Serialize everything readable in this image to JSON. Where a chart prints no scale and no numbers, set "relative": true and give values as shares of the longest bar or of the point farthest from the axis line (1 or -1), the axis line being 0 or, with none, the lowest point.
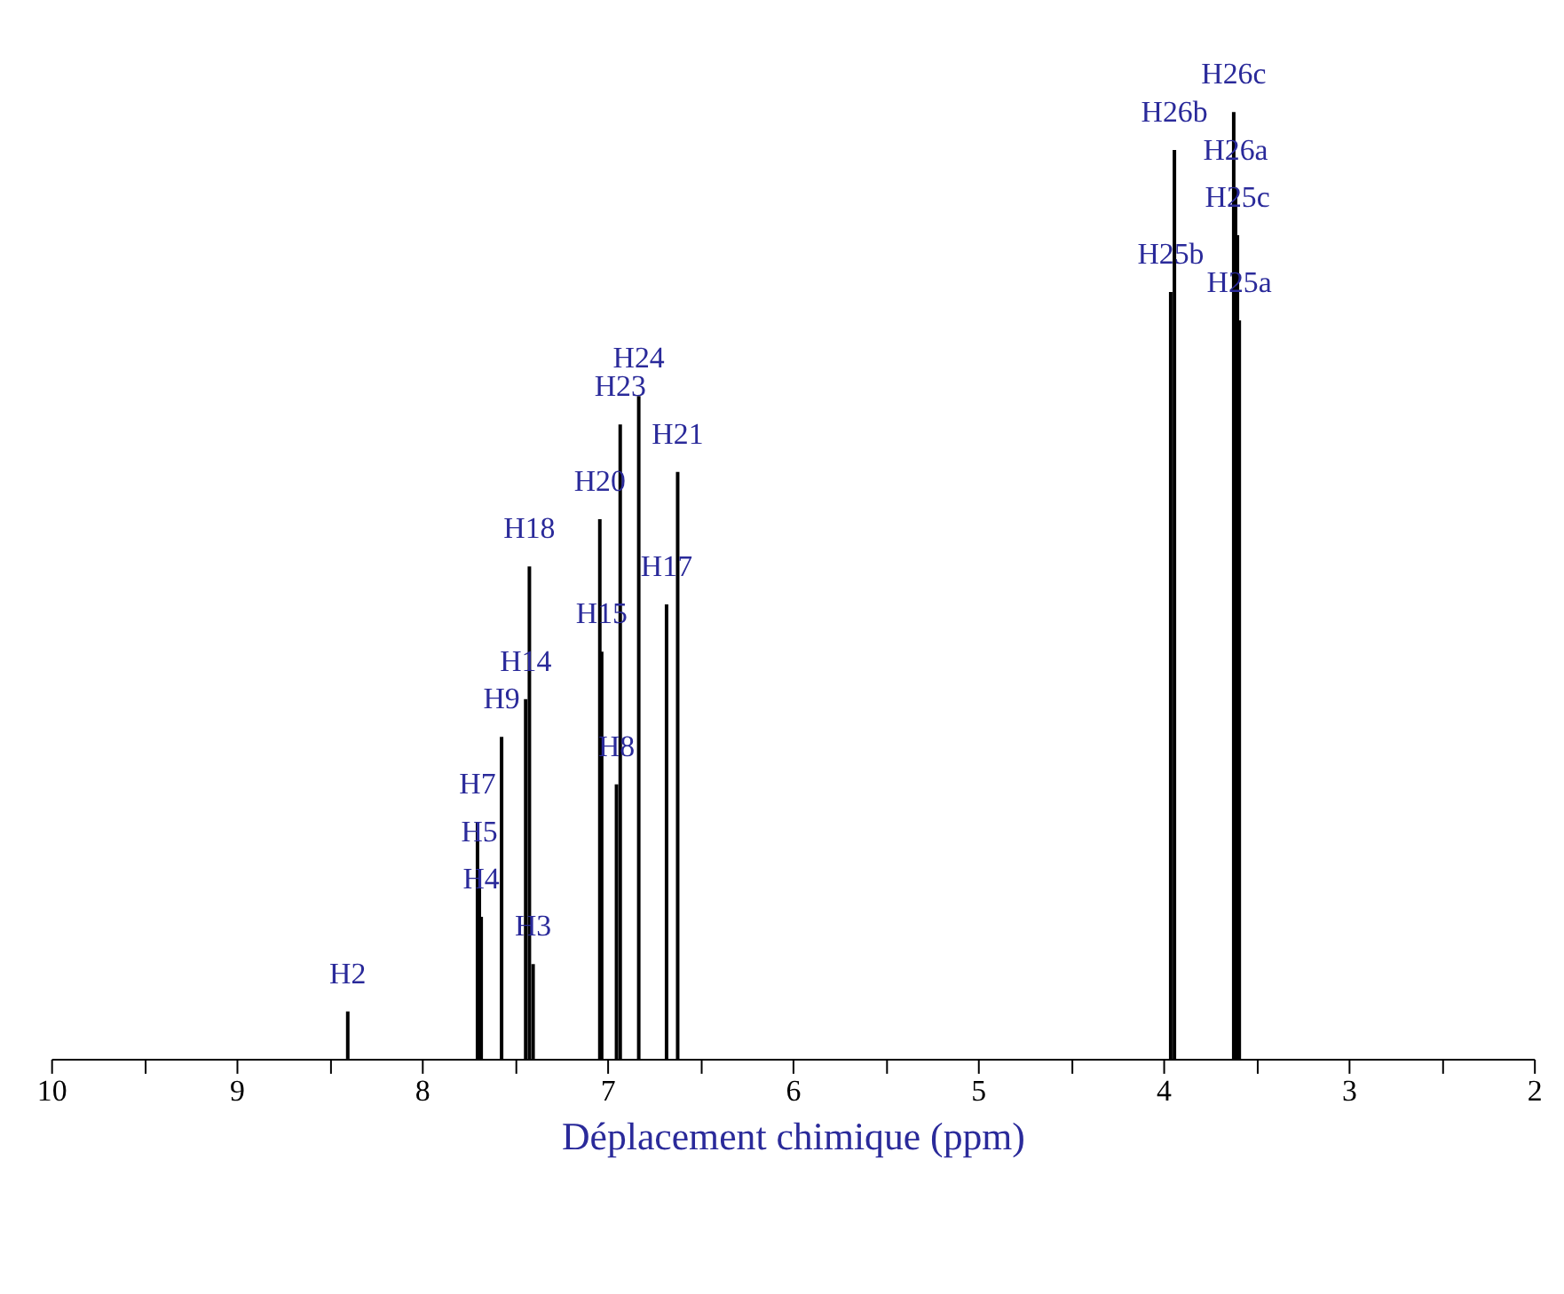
{
  "chart_data": {
    "type": "bar",
    "relative": true,
    "xlabel": "Déplacement chimique (ppm)",
    "x": [
      8.4,
      7.7,
      7.69,
      7.68,
      7.57,
      7.44,
      7.42,
      7.4,
      7.04,
      7.03,
      6.95,
      6.93,
      6.83,
      6.68,
      6.62,
      3.96,
      3.94,
      3.62,
      3.61,
      3.6,
      3.59
    ],
    "values": [
      0.05,
      0.25,
      0.2,
      0.15,
      0.34,
      0.38,
      0.52,
      0.1,
      0.57,
      0.43,
      0.29,
      0.67,
      0.7,
      0.48,
      0.62,
      0.81,
      0.96,
      1.0,
      0.92,
      0.87,
      0.78
    ],
    "color": "#000000",
    "annotations": [
      {
        "text": "H2",
        "x": 8.4,
        "y": 0.05
      },
      {
        "text": "H7",
        "x": 7.7,
        "y": 0.25
      },
      {
        "text": "H5",
        "x": 7.69,
        "y": 0.2
      },
      {
        "text": "H4",
        "x": 7.68,
        "y": 0.15
      },
      {
        "text": "H9",
        "x": 7.57,
        "y": 0.34
      },
      {
        "text": "H14",
        "x": 7.44,
        "y": 0.38
      },
      {
        "text": "H18",
        "x": 7.42,
        "y": 0.52
      },
      {
        "text": "H3",
        "x": 7.4,
        "y": 0.1
      },
      {
        "text": "H20",
        "x": 7.04,
        "y": 0.57
      },
      {
        "text": "H15",
        "x": 7.03,
        "y": 0.43
      },
      {
        "text": "H8",
        "x": 6.95,
        "y": 0.29
      },
      {
        "text": "H23",
        "x": 6.93,
        "y": 0.67
      },
      {
        "text": "H24",
        "x": 6.83,
        "y": 0.7
      },
      {
        "text": "H17",
        "x": 6.68,
        "y": 0.48
      },
      {
        "text": "H21",
        "x": 6.62,
        "y": 0.62
      },
      {
        "text": "H25b",
        "x": 3.96,
        "y": 0.81
      },
      {
        "text": "H26b",
        "x": 3.94,
        "y": 0.96
      },
      {
        "text": "H26c",
        "x": 3.62,
        "y": 1.0
      },
      {
        "text": "H26a",
        "x": 3.61,
        "y": 0.92
      },
      {
        "text": "H25c",
        "x": 3.6,
        "y": 0.87
      },
      {
        "text": "H25a",
        "x": 3.59,
        "y": 0.78
      }
    ],
    "xlim": [
      10,
      2
    ],
    "xticks": [
      10,
      {
        "value": 9.5,
        "label": null
      },
      9,
      {
        "value": 8.5,
        "label": null
      },
      8,
      {
        "value": 7.5,
        "label": null
      },
      7,
      {
        "value": 6.5,
        "label": null
      },
      6,
      {
        "value": 5.5,
        "label": null
      },
      5,
      {
        "value": 4.5,
        "label": null
      },
      4,
      {
        "value": 3.5,
        "label": null
      },
      3,
      {
        "value": 2.5,
        "label": null
      },
      2
    ],
    "grid": false
  }
}
